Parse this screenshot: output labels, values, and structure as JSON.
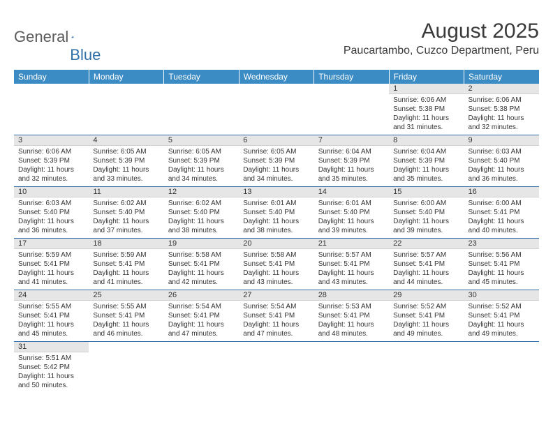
{
  "logo": {
    "word1": "General",
    "word2": "Blue"
  },
  "title": "August 2025",
  "location": "Paucartambo, Cuzco Department, Peru",
  "colors": {
    "header_bg": "#3b8bc4",
    "header_text": "#ffffff",
    "daynum_bg": "#e6e6e6",
    "cell_border": "#2f6fa8",
    "logo_accent": "#2f6fa8",
    "body_text": "#333333"
  },
  "day_headers": [
    "Sunday",
    "Monday",
    "Tuesday",
    "Wednesday",
    "Thursday",
    "Friday",
    "Saturday"
  ],
  "weeks": [
    [
      null,
      null,
      null,
      null,
      null,
      {
        "n": "1",
        "sunrise": "Sunrise: 6:06 AM",
        "sunset": "Sunset: 5:38 PM",
        "daylight": "Daylight: 11 hours and 31 minutes."
      },
      {
        "n": "2",
        "sunrise": "Sunrise: 6:06 AM",
        "sunset": "Sunset: 5:38 PM",
        "daylight": "Daylight: 11 hours and 32 minutes."
      }
    ],
    [
      {
        "n": "3",
        "sunrise": "Sunrise: 6:06 AM",
        "sunset": "Sunset: 5:39 PM",
        "daylight": "Daylight: 11 hours and 32 minutes."
      },
      {
        "n": "4",
        "sunrise": "Sunrise: 6:05 AM",
        "sunset": "Sunset: 5:39 PM",
        "daylight": "Daylight: 11 hours and 33 minutes."
      },
      {
        "n": "5",
        "sunrise": "Sunrise: 6:05 AM",
        "sunset": "Sunset: 5:39 PM",
        "daylight": "Daylight: 11 hours and 34 minutes."
      },
      {
        "n": "6",
        "sunrise": "Sunrise: 6:05 AM",
        "sunset": "Sunset: 5:39 PM",
        "daylight": "Daylight: 11 hours and 34 minutes."
      },
      {
        "n": "7",
        "sunrise": "Sunrise: 6:04 AM",
        "sunset": "Sunset: 5:39 PM",
        "daylight": "Daylight: 11 hours and 35 minutes."
      },
      {
        "n": "8",
        "sunrise": "Sunrise: 6:04 AM",
        "sunset": "Sunset: 5:39 PM",
        "daylight": "Daylight: 11 hours and 35 minutes."
      },
      {
        "n": "9",
        "sunrise": "Sunrise: 6:03 AM",
        "sunset": "Sunset: 5:40 PM",
        "daylight": "Daylight: 11 hours and 36 minutes."
      }
    ],
    [
      {
        "n": "10",
        "sunrise": "Sunrise: 6:03 AM",
        "sunset": "Sunset: 5:40 PM",
        "daylight": "Daylight: 11 hours and 36 minutes."
      },
      {
        "n": "11",
        "sunrise": "Sunrise: 6:02 AM",
        "sunset": "Sunset: 5:40 PM",
        "daylight": "Daylight: 11 hours and 37 minutes."
      },
      {
        "n": "12",
        "sunrise": "Sunrise: 6:02 AM",
        "sunset": "Sunset: 5:40 PM",
        "daylight": "Daylight: 11 hours and 38 minutes."
      },
      {
        "n": "13",
        "sunrise": "Sunrise: 6:01 AM",
        "sunset": "Sunset: 5:40 PM",
        "daylight": "Daylight: 11 hours and 38 minutes."
      },
      {
        "n": "14",
        "sunrise": "Sunrise: 6:01 AM",
        "sunset": "Sunset: 5:40 PM",
        "daylight": "Daylight: 11 hours and 39 minutes."
      },
      {
        "n": "15",
        "sunrise": "Sunrise: 6:00 AM",
        "sunset": "Sunset: 5:40 PM",
        "daylight": "Daylight: 11 hours and 39 minutes."
      },
      {
        "n": "16",
        "sunrise": "Sunrise: 6:00 AM",
        "sunset": "Sunset: 5:41 PM",
        "daylight": "Daylight: 11 hours and 40 minutes."
      }
    ],
    [
      {
        "n": "17",
        "sunrise": "Sunrise: 5:59 AM",
        "sunset": "Sunset: 5:41 PM",
        "daylight": "Daylight: 11 hours and 41 minutes."
      },
      {
        "n": "18",
        "sunrise": "Sunrise: 5:59 AM",
        "sunset": "Sunset: 5:41 PM",
        "daylight": "Daylight: 11 hours and 41 minutes."
      },
      {
        "n": "19",
        "sunrise": "Sunrise: 5:58 AM",
        "sunset": "Sunset: 5:41 PM",
        "daylight": "Daylight: 11 hours and 42 minutes."
      },
      {
        "n": "20",
        "sunrise": "Sunrise: 5:58 AM",
        "sunset": "Sunset: 5:41 PM",
        "daylight": "Daylight: 11 hours and 43 minutes."
      },
      {
        "n": "21",
        "sunrise": "Sunrise: 5:57 AM",
        "sunset": "Sunset: 5:41 PM",
        "daylight": "Daylight: 11 hours and 43 minutes."
      },
      {
        "n": "22",
        "sunrise": "Sunrise: 5:57 AM",
        "sunset": "Sunset: 5:41 PM",
        "daylight": "Daylight: 11 hours and 44 minutes."
      },
      {
        "n": "23",
        "sunrise": "Sunrise: 5:56 AM",
        "sunset": "Sunset: 5:41 PM",
        "daylight": "Daylight: 11 hours and 45 minutes."
      }
    ],
    [
      {
        "n": "24",
        "sunrise": "Sunrise: 5:55 AM",
        "sunset": "Sunset: 5:41 PM",
        "daylight": "Daylight: 11 hours and 45 minutes."
      },
      {
        "n": "25",
        "sunrise": "Sunrise: 5:55 AM",
        "sunset": "Sunset: 5:41 PM",
        "daylight": "Daylight: 11 hours and 46 minutes."
      },
      {
        "n": "26",
        "sunrise": "Sunrise: 5:54 AM",
        "sunset": "Sunset: 5:41 PM",
        "daylight": "Daylight: 11 hours and 47 minutes."
      },
      {
        "n": "27",
        "sunrise": "Sunrise: 5:54 AM",
        "sunset": "Sunset: 5:41 PM",
        "daylight": "Daylight: 11 hours and 47 minutes."
      },
      {
        "n": "28",
        "sunrise": "Sunrise: 5:53 AM",
        "sunset": "Sunset: 5:41 PM",
        "daylight": "Daylight: 11 hours and 48 minutes."
      },
      {
        "n": "29",
        "sunrise": "Sunrise: 5:52 AM",
        "sunset": "Sunset: 5:41 PM",
        "daylight": "Daylight: 11 hours and 49 minutes."
      },
      {
        "n": "30",
        "sunrise": "Sunrise: 5:52 AM",
        "sunset": "Sunset: 5:41 PM",
        "daylight": "Daylight: 11 hours and 49 minutes."
      }
    ],
    [
      {
        "n": "31",
        "sunrise": "Sunrise: 5:51 AM",
        "sunset": "Sunset: 5:42 PM",
        "daylight": "Daylight: 11 hours and 50 minutes."
      },
      null,
      null,
      null,
      null,
      null,
      null
    ]
  ]
}
